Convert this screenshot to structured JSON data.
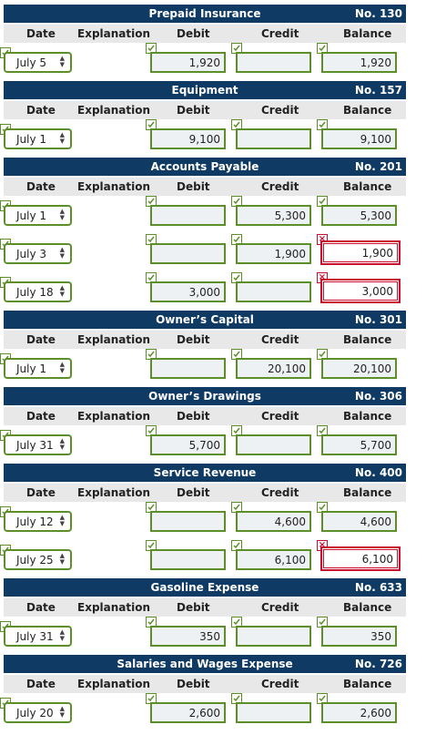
{
  "columns": {
    "date": "Date",
    "explanation": "Explanation",
    "debit": "Debit",
    "credit": "Credit",
    "balance": "Balance"
  },
  "accounts": [
    {
      "name": "Prepaid Insurance",
      "no": "No. 130",
      "rows": [
        {
          "date": "July 5",
          "debit": "1,920",
          "credit": "",
          "balance": "1,920",
          "balance_error": false
        }
      ]
    },
    {
      "name": "Equipment",
      "no": "No. 157",
      "rows": [
        {
          "date": "July 1",
          "debit": "9,100",
          "credit": "",
          "balance": "9,100",
          "balance_error": false
        }
      ]
    },
    {
      "name": "Accounts Payable",
      "no": "No. 201",
      "rows": [
        {
          "date": "July 1",
          "debit": "",
          "credit": "5,300",
          "balance": "5,300",
          "balance_error": false
        },
        {
          "date": "July 3",
          "debit": "",
          "credit": "1,900",
          "balance": "1,900",
          "balance_error": true
        },
        {
          "date": "July 18",
          "debit": "3,000",
          "credit": "",
          "balance": "3,000",
          "balance_error": true
        }
      ]
    },
    {
      "name": "Owner’s Capital",
      "no": "No. 301",
      "rows": [
        {
          "date": "July 1",
          "debit": "",
          "credit": "20,100",
          "balance": "20,100",
          "balance_error": false
        }
      ]
    },
    {
      "name": "Owner’s Drawings",
      "no": "No. 306",
      "rows": [
        {
          "date": "July 31",
          "debit": "5,700",
          "credit": "",
          "balance": "5,700",
          "balance_error": false
        }
      ]
    },
    {
      "name": "Service Revenue",
      "no": "No. 400",
      "rows": [
        {
          "date": "July 12",
          "debit": "",
          "credit": "4,600",
          "balance": "4,600",
          "balance_error": false
        },
        {
          "date": "July 25",
          "debit": "",
          "credit": "6,100",
          "balance": "6,100",
          "balance_error": true
        }
      ]
    },
    {
      "name": "Gasoline Expense",
      "no": "No. 633",
      "rows": [
        {
          "date": "July 31",
          "debit": "350",
          "credit": "",
          "balance": "350",
          "balance_error": false
        }
      ]
    },
    {
      "name": "Salaries and Wages Expense",
      "no": "No. 726",
      "rows": [
        {
          "date": "July 20",
          "debit": "2,600",
          "credit": "",
          "balance": "2,600",
          "balance_error": false
        }
      ]
    }
  ]
}
